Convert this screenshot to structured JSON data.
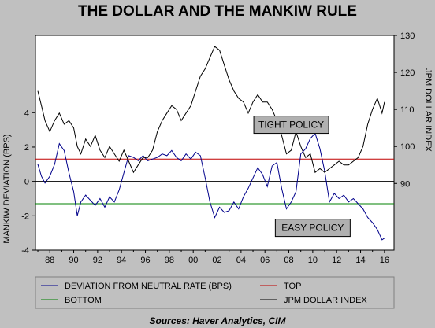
{
  "chart_data": {
    "type": "line",
    "title": "THE DOLLAR AND THE MANKIW RULE",
    "y_left_label": "MANKIW DEVIATION (BPS)",
    "y_right_label": "JPM DOLLAR INDEX",
    "y_left_ticks": [
      -4,
      -2,
      0,
      2,
      4
    ],
    "y_right_ticks": [
      90,
      100,
      110,
      120,
      130
    ],
    "y_left_range": [
      -4,
      8.5
    ],
    "y_right_range": [
      72,
      130
    ],
    "x_range": [
      1986.8,
      2016.8
    ],
    "x_ticks": [
      {
        "value": 1988,
        "label": "88"
      },
      {
        "value": 1990,
        "label": "90"
      },
      {
        "value": 1992,
        "label": "92"
      },
      {
        "value": 1994,
        "label": "94"
      },
      {
        "value": 1996,
        "label": "96"
      },
      {
        "value": 1998,
        "label": "98"
      },
      {
        "value": 2000,
        "label": "00"
      },
      {
        "value": 2002,
        "label": "02"
      },
      {
        "value": 2004,
        "label": "04"
      },
      {
        "value": 2006,
        "label": "06"
      },
      {
        "value": 2008,
        "label": "08"
      },
      {
        "value": 2010,
        "label": "10"
      },
      {
        "value": 2012,
        "label": "12"
      },
      {
        "value": 2014,
        "label": "14"
      },
      {
        "value": 2016,
        "label": "16"
      }
    ],
    "top_level": 1.3,
    "bottom_level": -1.3,
    "zero_level": 0,
    "series": [
      {
        "name": "DEVIATION FROM NEUTRAL RATE (BPS)",
        "axis": "left",
        "color": "#00008b",
        "x": [
          1987.0,
          1987.3,
          1987.6,
          1988.0,
          1988.4,
          1988.8,
          1989.2,
          1989.6,
          1990.0,
          1990.3,
          1990.6,
          1991.0,
          1991.4,
          1991.8,
          1992.2,
          1992.6,
          1993.0,
          1993.4,
          1993.8,
          1994.2,
          1994.6,
          1995.0,
          1995.4,
          1995.8,
          1996.2,
          1996.6,
          1997.0,
          1997.4,
          1997.8,
          1998.2,
          1998.6,
          1999.0,
          1999.4,
          1999.8,
          2000.2,
          2000.6,
          2001.0,
          2001.4,
          2001.8,
          2002.2,
          2002.6,
          2003.0,
          2003.4,
          2003.8,
          2004.2,
          2004.6,
          2005.0,
          2005.4,
          2005.8,
          2006.2,
          2006.6,
          2007.0,
          2007.4,
          2007.8,
          2008.2,
          2008.6,
          2009.0,
          2009.4,
          2009.8,
          2010.2,
          2010.6,
          2011.0,
          2011.4,
          2011.8,
          2012.2,
          2012.6,
          2013.0,
          2013.4,
          2013.8,
          2014.2,
          2014.6,
          2015.0,
          2015.4,
          2015.8,
          2016.0
        ],
        "y": [
          1.0,
          0.3,
          -0.1,
          0.3,
          1.0,
          2.2,
          1.8,
          0.5,
          -0.6,
          -2.0,
          -1.2,
          -0.8,
          -1.1,
          -1.4,
          -1.0,
          -1.5,
          -0.9,
          -1.2,
          -0.5,
          0.5,
          1.5,
          1.4,
          1.2,
          1.5,
          1.2,
          1.3,
          1.4,
          1.6,
          1.5,
          1.8,
          1.4,
          1.2,
          1.6,
          1.3,
          1.7,
          1.5,
          0.2,
          -1.2,
          -2.1,
          -1.5,
          -1.8,
          -1.7,
          -1.2,
          -1.6,
          -0.9,
          -0.4,
          0.2,
          0.8,
          0.4,
          -0.3,
          0.9,
          1.1,
          -0.4,
          -1.6,
          -1.2,
          -0.6,
          1.6,
          1.9,
          2.5,
          2.8,
          1.9,
          0.6,
          -1.2,
          -0.7,
          -1.0,
          -0.8,
          -1.2,
          -1.0,
          -1.3,
          -1.6,
          -2.1,
          -2.4,
          -2.8,
          -3.4,
          -3.3
        ]
      },
      {
        "name": "TOP",
        "axis": "left",
        "color": "#c00000"
      },
      {
        "name": "BOTTOM",
        "axis": "left",
        "color": "#008000"
      },
      {
        "name": "JPM DOLLAR INDEX",
        "axis": "right",
        "color": "#000000",
        "x": [
          1987.0,
          1987.3,
          1987.6,
          1988.0,
          1988.4,
          1988.8,
          1989.2,
          1989.6,
          1990.0,
          1990.3,
          1990.6,
          1991.0,
          1991.4,
          1991.8,
          1992.2,
          1992.6,
          1993.0,
          1993.4,
          1993.8,
          1994.2,
          1994.6,
          1995.0,
          1995.4,
          1995.8,
          1996.2,
          1996.6,
          1997.0,
          1997.4,
          1997.8,
          1998.2,
          1998.6,
          1999.0,
          1999.4,
          1999.8,
          2000.2,
          2000.6,
          2001.0,
          2001.4,
          2001.8,
          2002.2,
          2002.6,
          2003.0,
          2003.4,
          2003.8,
          2004.2,
          2004.6,
          2005.0,
          2005.4,
          2005.8,
          2006.2,
          2006.6,
          2007.0,
          2007.4,
          2007.8,
          2008.2,
          2008.6,
          2009.0,
          2009.4,
          2009.8,
          2010.2,
          2010.6,
          2011.0,
          2011.4,
          2011.8,
          2012.2,
          2012.6,
          2013.0,
          2013.4,
          2013.8,
          2014.2,
          2014.6,
          2015.0,
          2015.4,
          2015.8,
          2016.0
        ],
        "y": [
          115,
          111,
          107,
          104,
          107,
          109,
          106,
          107,
          105,
          100,
          98,
          102,
          100,
          103,
          99,
          97,
          100,
          98,
          96,
          99,
          96,
          93,
          95,
          97,
          97,
          99,
          104,
          107,
          109,
          111,
          110,
          107,
          109,
          111,
          115,
          119,
          121,
          124,
          127,
          126,
          122,
          118,
          115,
          113,
          112,
          109,
          112,
          114,
          112,
          112,
          110,
          107,
          103,
          98,
          99,
          104,
          100,
          97,
          98,
          93,
          94,
          93,
          94,
          95,
          96,
          95,
          95,
          96,
          97,
          100,
          106,
          110,
          113,
          109,
          112
        ]
      }
    ],
    "annotations": [
      {
        "text": "TIGHT POLICY",
        "x": 2008.2,
        "y": 3.3
      },
      {
        "text": "EASY POLICY",
        "x": 2010.0,
        "y": -2.7
      }
    ],
    "source": "Sources:  Haver Analytics, CIM",
    "legend_position": "bottom"
  }
}
